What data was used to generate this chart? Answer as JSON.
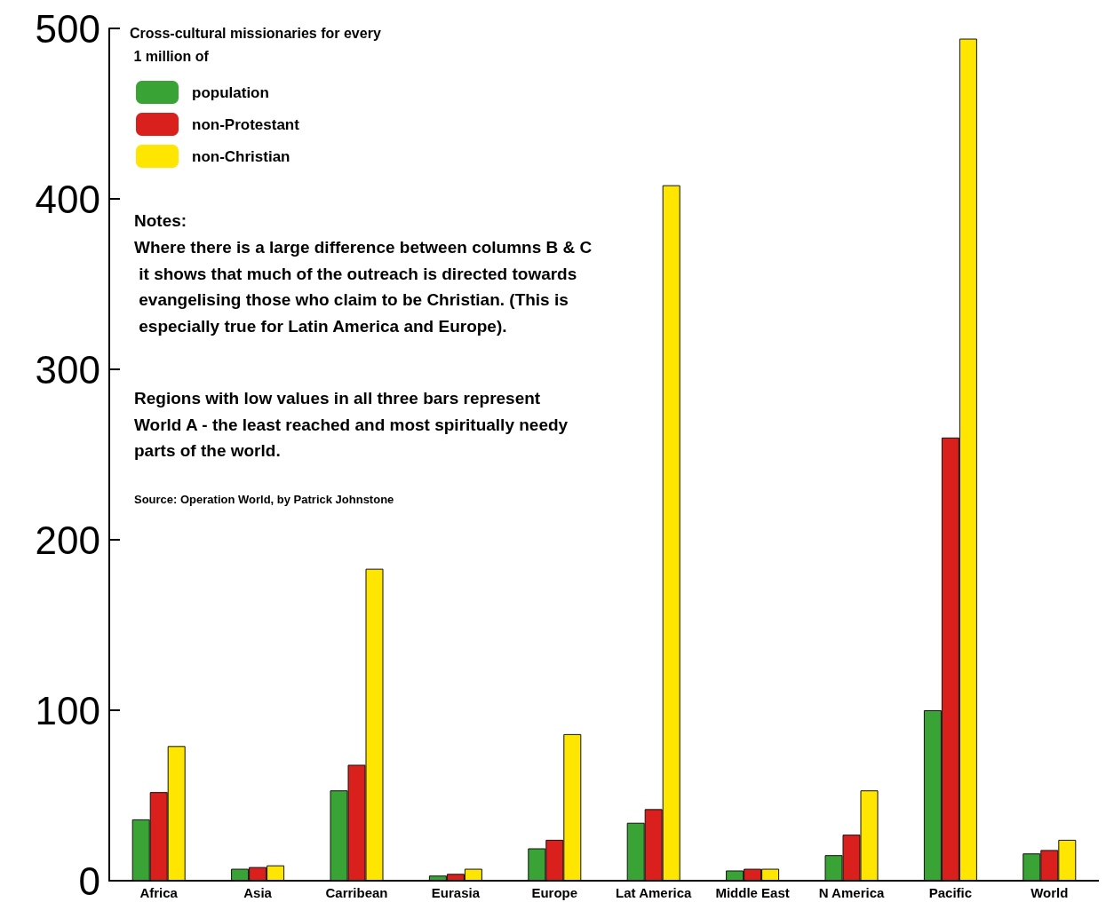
{
  "chart_data": {
    "type": "bar",
    "legend_title": "Cross-cultural missionaries for every 1 million of",
    "categories": [
      "Africa",
      "Asia",
      "Carribean",
      "Eurasia",
      "Europe",
      "Lat America",
      "Middle East",
      "N America",
      "Pacific",
      "World"
    ],
    "series": [
      {
        "name": "population",
        "color": "#3aa335",
        "values": [
          36,
          7,
          53,
          3,
          19,
          34,
          6,
          15,
          100,
          16
        ]
      },
      {
        "name": "non-Protestant",
        "color": "#d9201c",
        "values": [
          52,
          8,
          68,
          4,
          24,
          42,
          7,
          27,
          260,
          18
        ]
      },
      {
        "name": "non-Christian",
        "color": "#ffe600",
        "values": [
          79,
          9,
          183,
          7,
          86,
          408,
          7,
          53,
          494,
          24
        ]
      }
    ],
    "ylim": [
      0,
      500
    ],
    "yticks": [
      0,
      100,
      200,
      300,
      400,
      500
    ],
    "grid": false,
    "legend": "top left",
    "annotations": [
      "Notes:",
      "Where there is a large difference between columns B & C it shows that much of the outreach is directed towards evangelising those who claim to be Christian. (This is especially true for Latin America and Europe).",
      "Regions with low values in all three bars represent World A - the least reached and most spiritually needy parts of the world.",
      "Source: Operation World, by Patrick Johnstone"
    ]
  }
}
